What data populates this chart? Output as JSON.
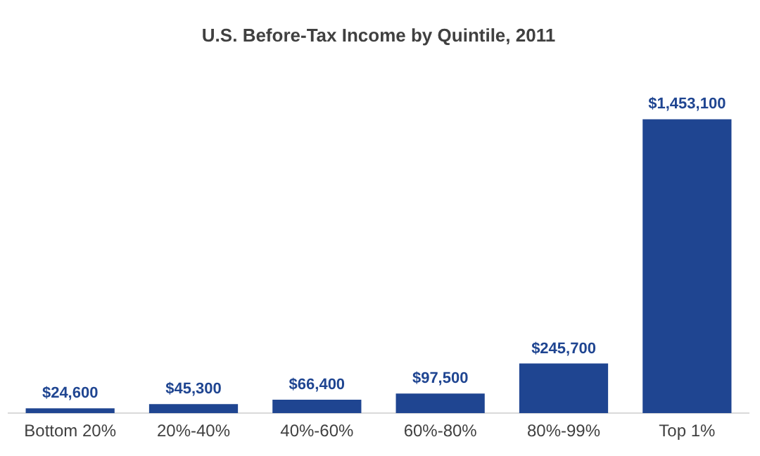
{
  "chart_data": {
    "type": "bar",
    "title": "U.S. Before-Tax Income by Quintile, 2011",
    "categories": [
      "Bottom 20%",
      "20%-40%",
      "40%-60%",
      "60%-80%",
      "80%-99%",
      "Top 1%"
    ],
    "values": [
      24600,
      45300,
      66400,
      97500,
      245700,
      1453100
    ],
    "value_labels": [
      "$24,600",
      "$45,300",
      "$66,400",
      "$97,500",
      "$245,700",
      "$1,453,100"
    ],
    "color": "#1f4591",
    "grid": false,
    "legend": false,
    "tick_labels": "x"
  }
}
